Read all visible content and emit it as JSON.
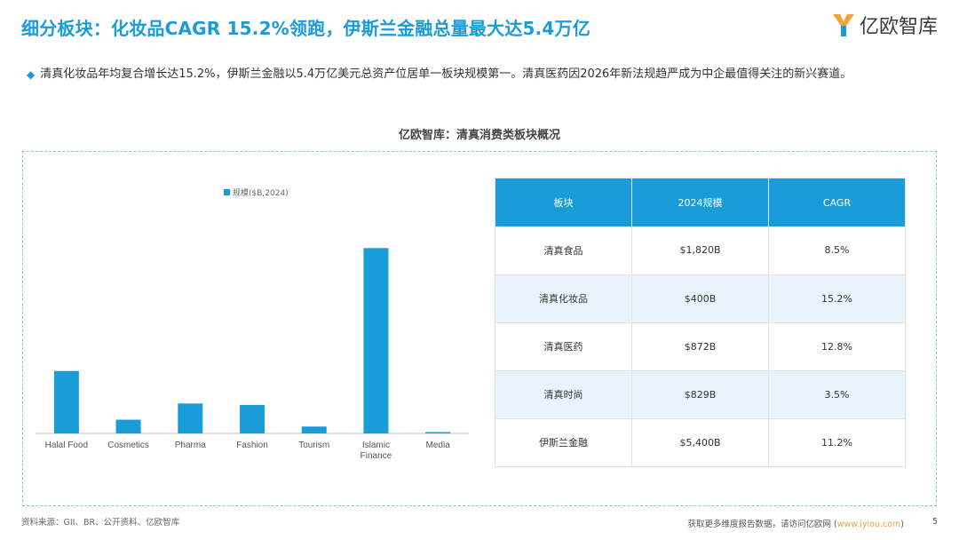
{
  "header": {
    "title": "细分板块：化妆品CAGR 15.2%领跑，伊斯兰金融总量最大达5.4万亿",
    "logo_text": "亿欧智库"
  },
  "bullet": {
    "text": "清真化妆品年均复合增长达15.2%，伊斯兰金融以5.4万亿美元总资产位居单一板块规模第一。清真医药因2026年新法规趋严成为中企最值得关注的新兴赛道。"
  },
  "section_title": "亿欧智库：清真消费类板块概况",
  "chart_data": {
    "type": "bar",
    "categories": [
      "Halal Food",
      "Cosmetics",
      "Pharma",
      "Fashion",
      "Tourism",
      "Islamic Finance",
      "Media"
    ],
    "category_lines": [
      [
        "Halal Food"
      ],
      [
        "Cosmetics"
      ],
      [
        "Pharma"
      ],
      [
        "Fashion"
      ],
      [
        "Tourism"
      ],
      [
        "Islamic",
        "Finance"
      ],
      [
        "Media"
      ]
    ],
    "series": [
      {
        "name": "规模($B,2024)",
        "values": [
          1820,
          400,
          872,
          829,
          200,
          5400,
          40
        ]
      }
    ],
    "ylim": [
      0,
      5900
    ],
    "grid": false,
    "legend": "top-center",
    "bar_color": "#1a9cd8"
  },
  "table": {
    "headers": [
      "板块",
      "2024规模",
      "CAGR"
    ],
    "rows": [
      [
        "清真食品",
        "$1,820B",
        "8.5%"
      ],
      [
        "清真化妆品",
        "$400B",
        "15.2%"
      ],
      [
        "清真医药",
        "$872B",
        "12.8%"
      ],
      [
        "清真时尚",
        "$829B",
        "3.5%"
      ],
      [
        "伊斯兰金融",
        "$5,400B",
        "11.2%"
      ]
    ]
  },
  "footer": {
    "source": "资料来源：GII、BR、公开资料、亿欧智库",
    "promo": "获取更多维度报告数据，请访问亿欧网 (",
    "url": "www.iyiou.com",
    "promo_end": ")",
    "page": "5"
  },
  "colors": {
    "accent": "#1a9cd8",
    "frame": "#7fcfd7",
    "row_alt": "#e8f4fb"
  }
}
